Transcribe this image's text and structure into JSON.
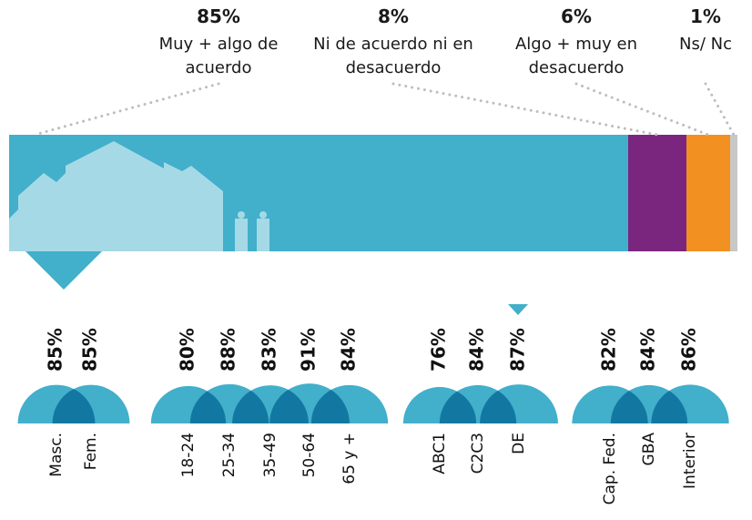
{
  "chart_data": [
    {
      "type": "stacked-bar",
      "categories": [
        "Muy + algo de acuerdo",
        "Ni de acuerdo ni en desacuerdo",
        "Algo + muy en desacuerdo",
        "Ns/ Nc"
      ],
      "values": [
        85,
        8,
        6,
        1
      ],
      "value_labels": [
        "85%",
        "8%",
        "6%",
        "1%"
      ],
      "colors": [
        "#42afcb",
        "#7b267e",
        "#f29121",
        "#c8c8c8"
      ]
    },
    {
      "type": "bubble",
      "color": "#42afcb",
      "groups": [
        {
          "categories": [
            "Masc.",
            "Fem."
          ],
          "values": [
            85,
            85
          ],
          "value_labels": [
            "85%",
            "85%"
          ]
        },
        {
          "categories": [
            "18-24",
            "25-34",
            "35-49",
            "50-64",
            "65 y +"
          ],
          "values": [
            80,
            88,
            83,
            91,
            84
          ],
          "value_labels": [
            "80%",
            "88%",
            "83%",
            "91%",
            "84%"
          ]
        },
        {
          "categories": [
            "ABC1",
            "C2C3",
            "DE"
          ],
          "values": [
            76,
            84,
            87
          ],
          "value_labels": [
            "76%",
            "84%",
            "87%"
          ]
        },
        {
          "categories": [
            "Cap. Fed.",
            "GBA",
            "Interior"
          ],
          "values": [
            82,
            84,
            86
          ],
          "value_labels": [
            "82%",
            "84%",
            "86%"
          ]
        }
      ]
    }
  ]
}
